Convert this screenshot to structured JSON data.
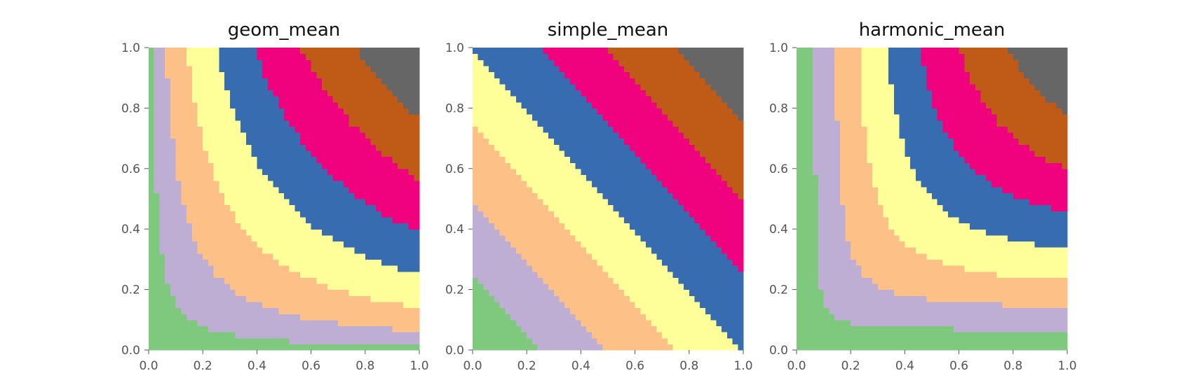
{
  "colors": {
    "bands": [
      "#7fc97f",
      "#beaed4",
      "#fdc086",
      "#ffff99",
      "#386cb0",
      "#f0027f",
      "#bf5b17",
      "#666666"
    ],
    "tick": "#555555"
  },
  "chart_data": [
    {
      "type": "heatmap",
      "title": "geom_mean",
      "band_value_formula": "sqrt(x*y)",
      "bands": 8,
      "grid_cells": 50,
      "xlim": [
        0,
        1
      ],
      "ylim": [
        0,
        1
      ],
      "xticks": [
        "0.0",
        "0.2",
        "0.4",
        "0.6",
        "0.8",
        "1.0"
      ],
      "yticks": [
        "0.0",
        "0.2",
        "0.4",
        "0.6",
        "0.8",
        "1.0"
      ],
      "grid": false
    },
    {
      "type": "heatmap",
      "title": "simple_mean",
      "band_value_formula": "(x+y)/2",
      "bands": 8,
      "grid_cells": 50,
      "xlim": [
        0,
        1
      ],
      "ylim": [
        0,
        1
      ],
      "xticks": [
        "0.0",
        "0.2",
        "0.4",
        "0.6",
        "0.8",
        "1.0"
      ],
      "yticks": [
        "0.0",
        "0.2",
        "0.4",
        "0.6",
        "0.8",
        "1.0"
      ],
      "grid": false
    },
    {
      "type": "heatmap",
      "title": "harmonic_mean",
      "band_value_formula": "2xy/(x+y)",
      "bands": 8,
      "grid_cells": 50,
      "xlim": [
        0,
        1
      ],
      "ylim": [
        0,
        1
      ],
      "xticks": [
        "0.0",
        "0.2",
        "0.4",
        "0.6",
        "0.8",
        "1.0"
      ],
      "yticks": [
        "0.0",
        "0.2",
        "0.4",
        "0.6",
        "0.8",
        "1.0"
      ],
      "grid": false
    }
  ]
}
